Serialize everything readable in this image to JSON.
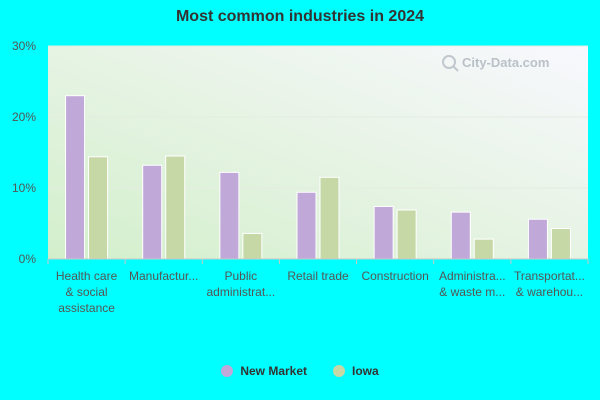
{
  "chart_data": {
    "type": "bar",
    "title": "Most common industries in 2024",
    "xlabel": "",
    "ylabel": "",
    "ylim": [
      0,
      30
    ],
    "y_ticks": [
      "0%",
      "10%",
      "20%",
      "30%"
    ],
    "y_tick_values": [
      0,
      10,
      20,
      30
    ],
    "grid": true,
    "legend_position": "bottom",
    "categories": [
      [
        "Health care",
        "& social",
        "assistance"
      ],
      [
        "Manufactur..."
      ],
      [
        "Public",
        "administrat..."
      ],
      [
        "Retail trade"
      ],
      [
        "Construction"
      ],
      [
        "Administra...",
        "& waste m..."
      ],
      [
        "Transportat...",
        "& warehou..."
      ]
    ],
    "series": [
      {
        "name": "New Market",
        "color": "#c0a8d8",
        "values": [
          23.0,
          13.2,
          12.2,
          9.4,
          7.4,
          6.6,
          5.6
        ]
      },
      {
        "name": "Iowa",
        "color": "#c6d8a6",
        "values": [
          14.4,
          14.5,
          3.6,
          11.5,
          6.9,
          2.8,
          4.3
        ]
      }
    ],
    "watermark": "City-Data.com"
  }
}
